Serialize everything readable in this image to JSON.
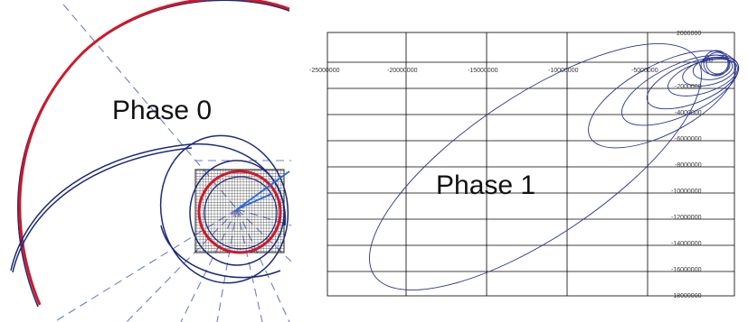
{
  "phase0": {
    "label": "Phase 0",
    "colors": {
      "red_orbit": "#d01828",
      "blue_orbit": "#1c2a78",
      "dashed": "#6e7ccc",
      "grid": "#222222"
    }
  },
  "phase1": {
    "label": "Phase 1",
    "colors": {
      "orbit": "#2a3590",
      "grid": "#000000"
    },
    "x_tick_labels": [
      "-25000000",
      "-20000000",
      "-15000000",
      "-10000000",
      "-5000000"
    ],
    "y_tick_labels": [
      "2000000",
      "0",
      "-2000000",
      "-4000000",
      "-6000000",
      "-8000000",
      "-10000000",
      "-12000000",
      "-14000000",
      "-16000000",
      "-18000000"
    ]
  }
}
